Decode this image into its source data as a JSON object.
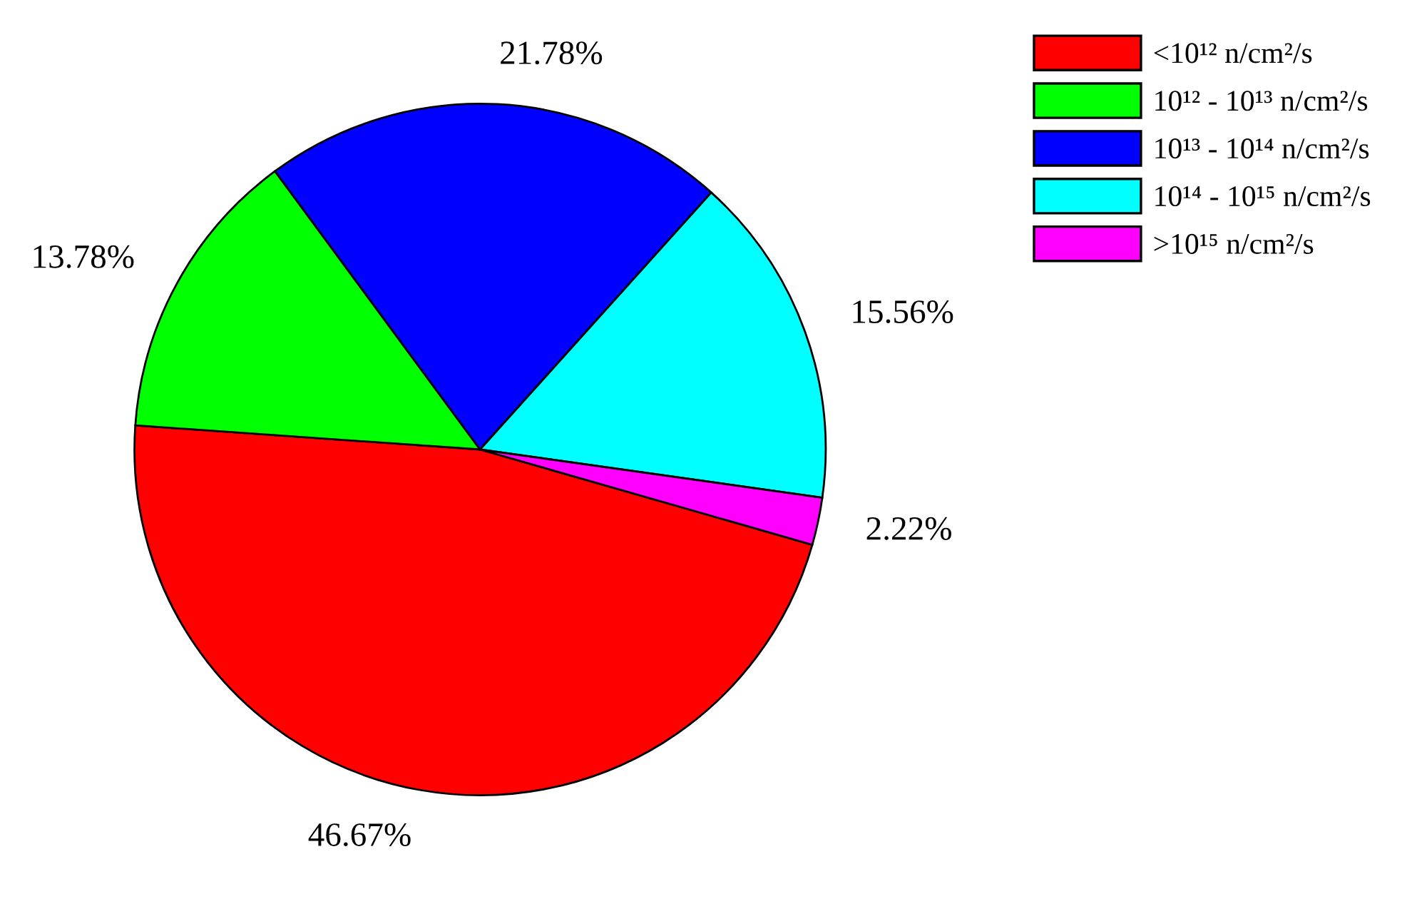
{
  "chart_data": {
    "type": "pie",
    "categories": [
      "<10¹² n/cm²/s",
      "10¹² - 10¹³ n/cm²/s",
      "10¹³ - 10¹⁴ n/cm²/s",
      "10¹⁴ - 10¹⁵ n/cm²/s",
      ">10¹⁵ n/cm²/s"
    ],
    "values": [
      46.67,
      13.78,
      21.78,
      15.56,
      2.22
    ],
    "colors": [
      "#ff0000",
      "#00ff00",
      "#0000ff",
      "#00ffff",
      "#ff00ff"
    ],
    "value_labels": [
      "46.67%",
      "13.78%",
      "21.78%",
      "15.56%",
      "2.22%"
    ],
    "legend": "top right"
  }
}
